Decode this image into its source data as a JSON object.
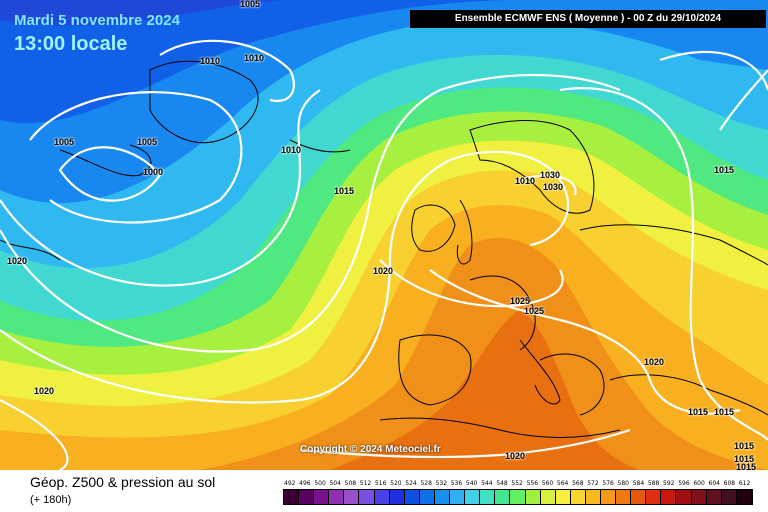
{
  "header": {
    "date": "Mardi 5 novembre 2024",
    "time": "13:00 locale",
    "source": "Ensemble ECMWF ENS  ( Moyenne )  -  00 Z du 29/10/2024"
  },
  "map": {
    "copyright": "Copyright © 2024 Meteociel.fr",
    "isobar_labels": [
      "1005",
      "1010",
      "1010",
      "1005",
      "1005",
      "1000",
      "1010",
      "1015",
      "1020",
      "1020",
      "1010",
      "1030",
      "1030",
      "1020",
      "1025",
      "1025",
      "1020",
      "1015",
      "1015",
      "1015",
      "1015",
      "1015",
      "1020",
      "1015"
    ]
  },
  "footer": {
    "title": "Géop. Z500 & pression au sol",
    "subtitle": "(+ 180h)",
    "scale_values": [
      "492",
      "496",
      "500",
      "504",
      "508",
      "512",
      "516",
      "520",
      "524",
      "528",
      "532",
      "536",
      "540",
      "544",
      "548",
      "552",
      "556",
      "560",
      "564",
      "568",
      "572",
      "576",
      "580",
      "584",
      "588",
      "592",
      "596",
      "600",
      "604",
      "608",
      "612"
    ],
    "scale_colors": [
      "#3a0033",
      "#5a0060",
      "#7a1090",
      "#8e30b0",
      "#9a50c8",
      "#7a50e0",
      "#4a40e8",
      "#2030e0",
      "#1050e0",
      "#1070e8",
      "#1890f0",
      "#30b0f0",
      "#40d0e8",
      "#40e0c0",
      "#40e890",
      "#60f060",
      "#a0f040",
      "#d8f040",
      "#f8f040",
      "#f8d830",
      "#f8b820",
      "#f89818",
      "#f07810",
      "#e85810",
      "#e03010",
      "#c81810",
      "#a01010",
      "#801018",
      "#601020",
      "#401020",
      "#200010"
    ]
  }
}
